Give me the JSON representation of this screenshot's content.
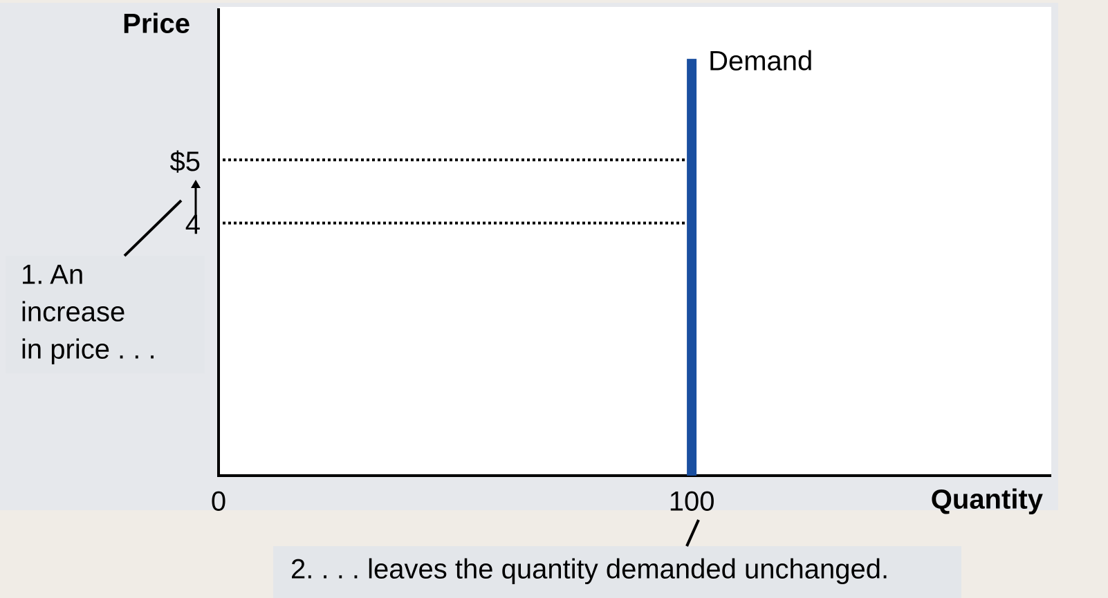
{
  "chart_data": {
    "type": "line",
    "x_label": "Quantity",
    "y_label": "Price",
    "xlim": [
      0,
      176
    ],
    "xticks": [
      0,
      100
    ],
    "ylim": [
      0,
      7.4
    ],
    "yticks": [
      {
        "value": 5,
        "label": "$5"
      },
      4
    ],
    "series": [
      {
        "name": "Demand",
        "color": "#1a4fa0",
        "x": [
          100,
          100
        ],
        "values": [
          0,
          6.6
        ]
      }
    ],
    "annotations": [
      {
        "lines": [
          "1. An",
          "increase",
          "in price . . ."
        ]
      },
      {
        "lines": [
          "2. . . . leaves the quantity demanded unchanged."
        ]
      }
    ]
  }
}
